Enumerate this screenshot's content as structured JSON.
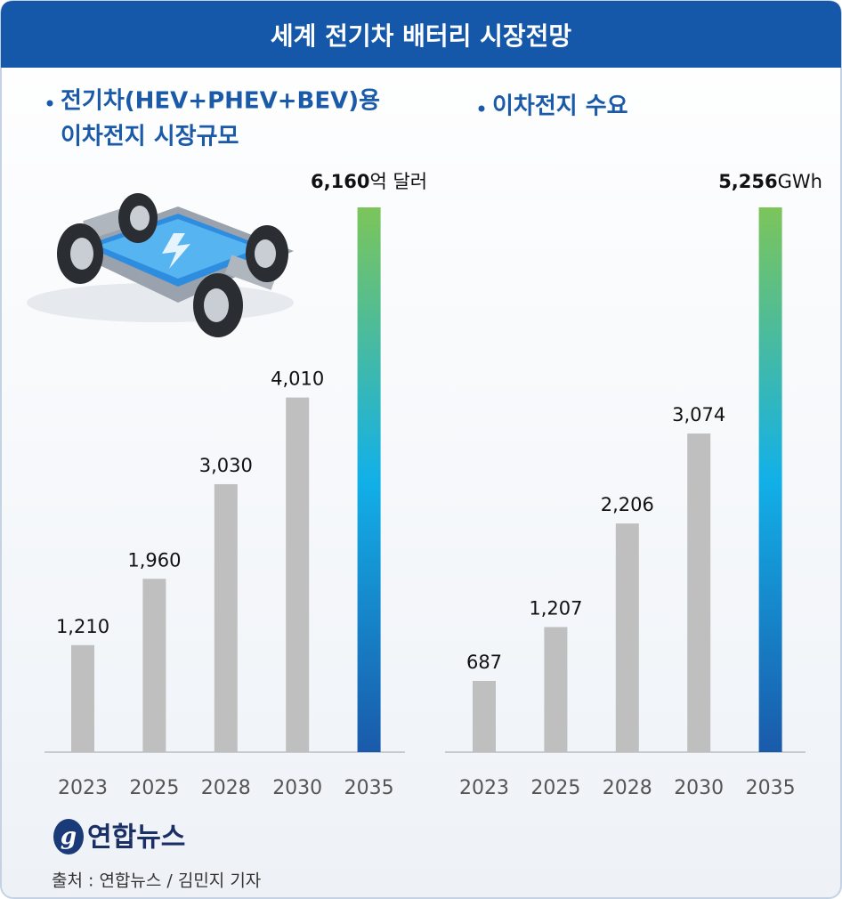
{
  "header": {
    "title": "세계 전기차 배터리 시장전망"
  },
  "chart_data": [
    {
      "type": "bar",
      "title": [
        "전기차(HEV+PHEV+BEV)용",
        "이차전지 시장규모"
      ],
      "categories": [
        "2023",
        "2025",
        "2028",
        "2030",
        "2035"
      ],
      "values": [
        1210,
        1960,
        3030,
        4010,
        6160
      ],
      "value_labels": [
        "1,210",
        "1,960",
        "3,030",
        "4,010",
        "6,160"
      ],
      "unit_label": "억 달러",
      "colors": [
        "#bfbfbf",
        "#bfbfbf",
        "#bfbfbf",
        "#bfbfbf",
        [
          "#7cc55a",
          "#12b0e8",
          "#1a5aaa"
        ]
      ]
    },
    {
      "type": "bar",
      "title": [
        "이차전지 수요"
      ],
      "categories": [
        "2023",
        "2025",
        "2028",
        "2030",
        "2035"
      ],
      "values": [
        687,
        1207,
        2206,
        3074,
        5256
      ],
      "value_labels": [
        "687",
        "1,207",
        "2,206",
        "3,074",
        "5,256"
      ],
      "unit_label": "GWh",
      "colors": [
        "#bfbfbf",
        "#bfbfbf",
        "#bfbfbf",
        "#bfbfbf",
        [
          "#7cc55a",
          "#12b0e8",
          "#1a5aaa"
        ]
      ]
    }
  ],
  "footer": {
    "logo": "연합뉴스",
    "source": "출처 : 연합뉴스 / 김민지 기자"
  }
}
